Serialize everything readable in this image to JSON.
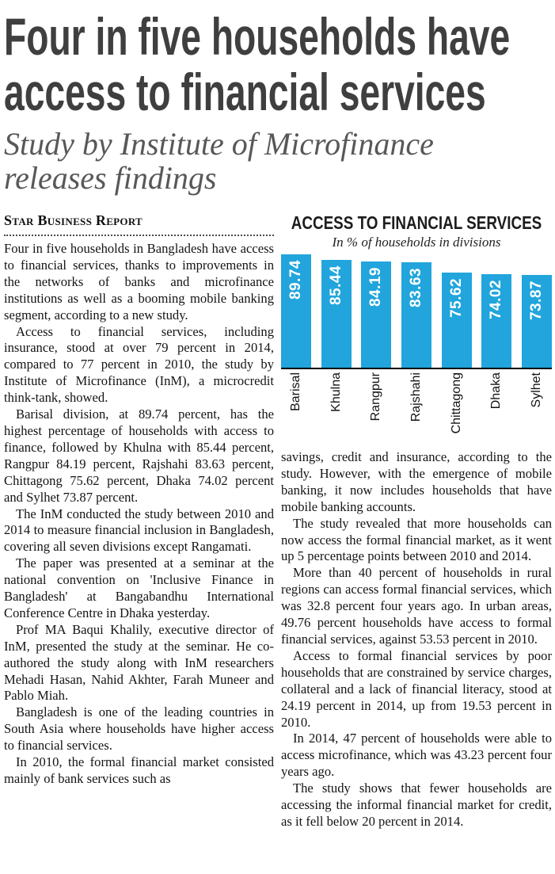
{
  "article": {
    "headline_lines": [
      "Four in five households have",
      "access to financial services"
    ],
    "subheadline_lines": [
      "Study by Institute of Microfinance",
      "releases findings"
    ],
    "byline": "Star Business Report",
    "left_paragraphs": [
      "Four in five households in Bangladesh have access to financial services, thanks to improvements in the networks of banks and microfinance institutions as well as a booming mobile banking segment, according to a new study.",
      "Access to financial services, including insurance, stood at over 79 percent in 2014, compared to 77 percent in 2010, the study by Institute of Microfinance (InM), a microcredit think-tank, showed.",
      "Barisal division, at 89.74 percent, has the highest percentage of households with access to finance, followed by Khulna with 85.44 percent, Rangpur 84.19 percent, Rajshahi 83.63 percent, Chittagong 75.62 percent, Dhaka 74.02 percent and Sylhet 73.87 percent.",
      "The InM conducted the study between 2010 and 2014 to measure financial inclusion in Bangladesh, covering all seven divisions except Rangamati.",
      "The paper was presented at a seminar at the national convention on 'Inclusive Finance in Bangladesh' at Bangabandhu International Conference Centre in Dhaka yesterday.",
      "Prof MA Baqui Khalily, executive director of InM, presented the study at the seminar. He co-authored the study along with InM researchers Mehadi Hasan, Nahid Akhter, Farah Muneer and Pablo Miah.",
      "Bangladesh is one of the leading countries in South Asia where households have higher access to financial services.",
      "In 2010, the formal financial market consisted mainly of bank services such as"
    ],
    "right_paragraphs": [
      "savings, credit and insurance, according to the study. However, with the emergence of mobile banking, it now includes households that have mobile banking accounts.",
      "The study revealed that more households can now access the formal financial market, as it went up 5 percentage points between 2010 and 2014.",
      "More than 40 percent of households in rural regions can access formal financial services, which was 32.8 percent four years ago. In urban areas, 49.76 percent households have access to formal financial services, against 53.53 percent in 2010.",
      "Access to formal financial services by poor households that are constrained by service charges, collateral and a lack of financial literacy, stood at 24.19 percent in 2014, up from 19.53 percent in 2010.",
      "In 2014, 47 percent of households were able to access microfinance, which was 43.23 percent four years ago.",
      "The study shows that fewer households are accessing the informal financial market for credit, as it fell below 20 percent in 2014."
    ]
  },
  "chart_data": {
    "type": "bar",
    "title": "ACCESS TO FINANCIAL SERVICES",
    "subtitle": "In % of households in divisions",
    "categories": [
      "Barisal",
      "Khulna",
      "Rangpur",
      "Rajshahi",
      "Chittagong",
      "Dhaka",
      "Sylhet"
    ],
    "values": [
      89.74,
      85.44,
      84.19,
      83.63,
      75.62,
      74.02,
      73.87
    ],
    "xlabel": "",
    "ylabel": "",
    "ylim": [
      0,
      90
    ],
    "grid": false,
    "legend": false,
    "bar_color": "#21a5dc",
    "value_label_color": "#ffffff",
    "value_labels_rotated": true,
    "category_labels_rotated": true
  }
}
